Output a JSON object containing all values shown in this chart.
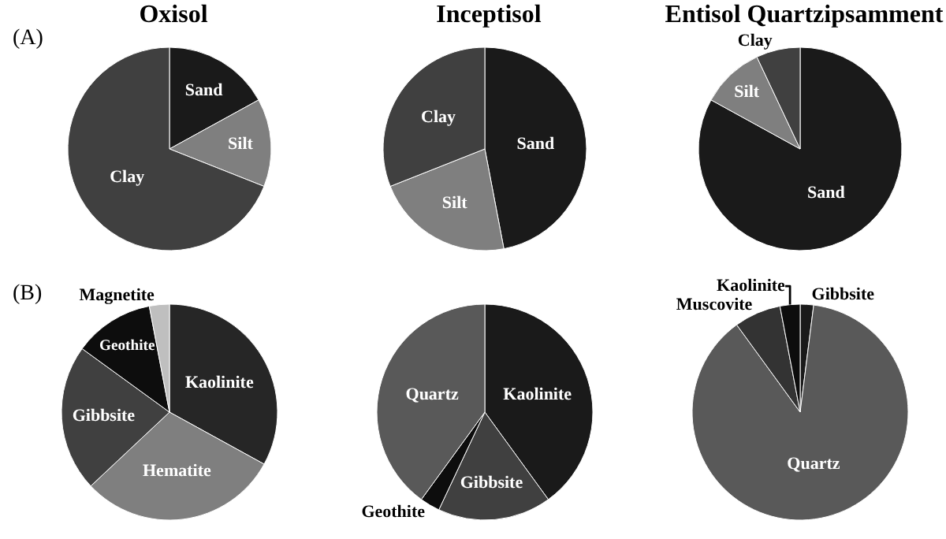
{
  "chart_data": [
    {
      "type": "pie",
      "title": "Oxisol",
      "annotations": [
        "(A)"
      ],
      "categories": [
        "Sand",
        "Silt",
        "Clay"
      ],
      "values": [
        17,
        14,
        69
      ],
      "colors": [
        "#1a1a1a",
        "#7f7f7f",
        "#404040"
      ]
    },
    {
      "type": "pie",
      "title": "Inceptisol",
      "categories": [
        "Sand",
        "Silt",
        "Clay"
      ],
      "values": [
        47,
        22,
        31
      ],
      "colors": [
        "#1a1a1a",
        "#7f7f7f",
        "#404040"
      ]
    },
    {
      "type": "pie",
      "title": "Entisol Quartzipsamment",
      "categories": [
        "Sand",
        "Silt",
        "Clay"
      ],
      "values": [
        83,
        10,
        7
      ],
      "colors": [
        "#1a1a1a",
        "#7f7f7f",
        "#404040"
      ]
    },
    {
      "type": "pie",
      "annotations": [
        "(B)"
      ],
      "categories": [
        "Kaolinite",
        "Hematite",
        "Gibbsite",
        "Geothite",
        "Magnetite"
      ],
      "values": [
        33,
        30,
        22,
        12,
        3
      ],
      "colors": [
        "#262626",
        "#7f7f7f",
        "#404040",
        "#0d0d0d",
        "#bfbfbf"
      ]
    },
    {
      "type": "pie",
      "categories": [
        "Kaolinite",
        "Gibbsite",
        "Geothite",
        "Quartz"
      ],
      "values": [
        40,
        17,
        3,
        40
      ],
      "colors": [
        "#1a1a1a",
        "#404040",
        "#0d0d0d",
        "#595959"
      ]
    },
    {
      "type": "pie",
      "categories": [
        "Gibbsite",
        "Quartz",
        "Muscovite",
        "Kaolinite"
      ],
      "values": [
        2,
        88,
        7,
        3
      ],
      "colors": [
        "#1a1a1a",
        "#595959",
        "#333333",
        "#0d0d0d"
      ]
    }
  ]
}
